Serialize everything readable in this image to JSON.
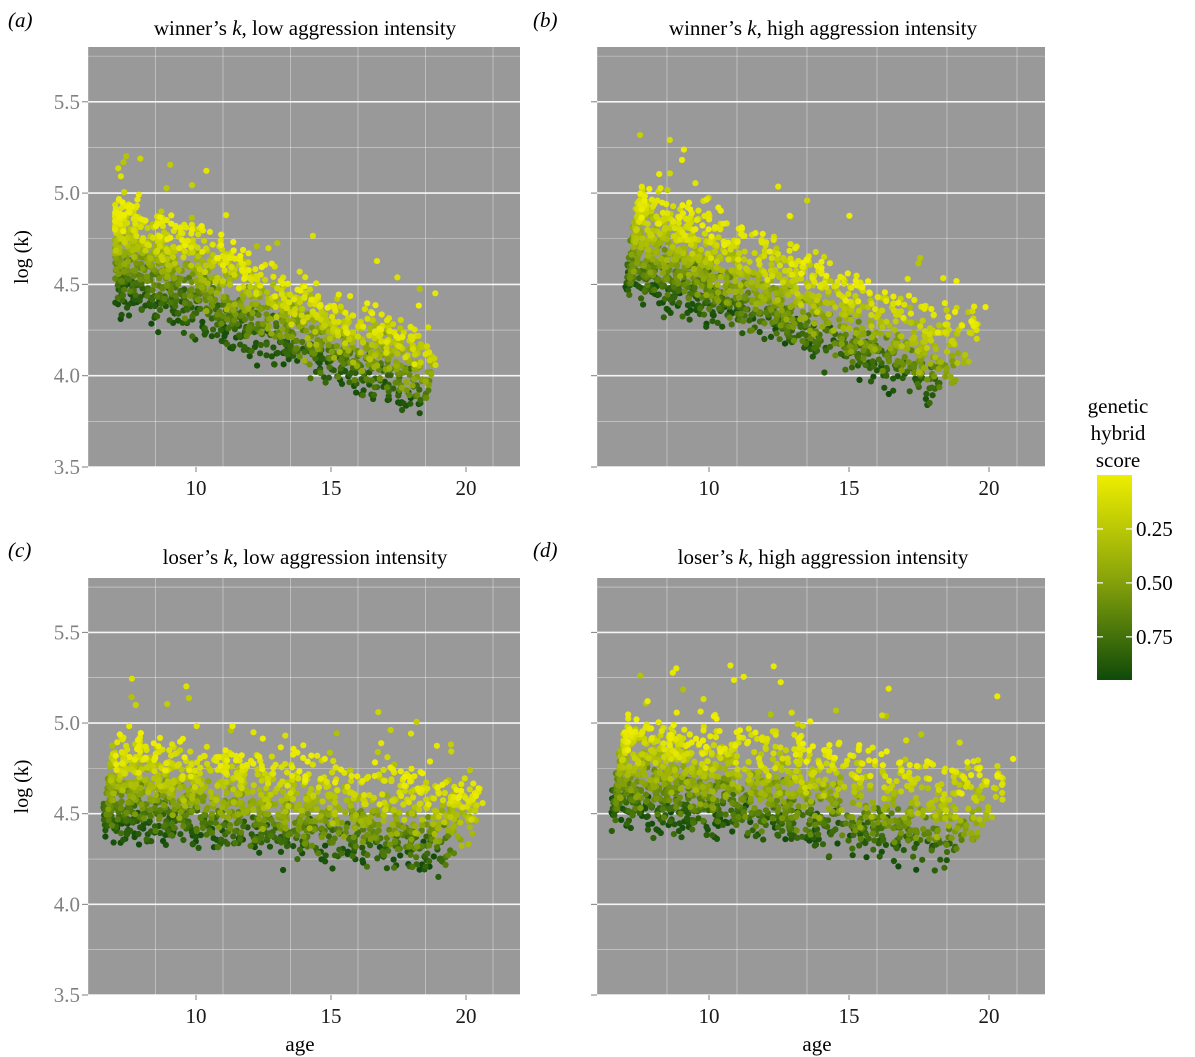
{
  "legend": {
    "title_lines": [
      "genetic",
      "hybrid",
      "score"
    ],
    "ticks": [
      {
        "value": 0.25,
        "label": "0.25"
      },
      {
        "value": 0.5,
        "label": "0.50"
      },
      {
        "value": 0.75,
        "label": "0.75"
      }
    ],
    "range": [
      0.0,
      0.95
    ],
    "color_low": "#eeee00",
    "color_mid": "#8aa50a",
    "color_high": "#0f4a0a"
  },
  "colors": {
    "panel_bg": "#999999",
    "grid": "#ffffff",
    "axis_text": "#808080"
  },
  "chart_data": [
    {
      "type": "scatter",
      "panel_label": "(a)",
      "title_pre": "winner’s ",
      "title_italic": "k",
      "title_post": ", low aggression intensity",
      "xlabel": "",
      "ylabel": "log (k)",
      "xlim": [
        6,
        22
      ],
      "ylim": [
        3.5,
        5.8
      ],
      "xticks": [
        10,
        15,
        20
      ],
      "yticks": [
        3.5,
        4.0,
        4.5,
        5.0,
        5.5
      ],
      "show_x_tick_labels": true,
      "show_y_tick_labels": true,
      "grid": true,
      "summary_trends": [
        {
          "score": 0.0,
          "points": [
            [
              7,
              4.92
            ],
            [
              10,
              4.78
            ],
            [
              15,
              4.38
            ],
            [
              19,
              4.18
            ]
          ]
        },
        {
          "score": 0.45,
          "points": [
            [
              7,
              4.7
            ],
            [
              10,
              4.55
            ],
            [
              15,
              4.2
            ],
            [
              19,
              4.0
            ]
          ]
        },
        {
          "score": 0.9,
          "points": [
            [
              7,
              4.45
            ],
            [
              10,
              4.28
            ],
            [
              15,
              4.05
            ],
            [
              18.5,
              3.82
            ]
          ]
        }
      ]
    },
    {
      "type": "scatter",
      "panel_label": "(b)",
      "title_pre": "winner’s ",
      "title_italic": "k",
      "title_post": ", high aggression intensity",
      "xlabel": "",
      "ylabel": "",
      "xlim": [
        6,
        22
      ],
      "ylim": [
        3.5,
        5.8
      ],
      "xticks": [
        10,
        15,
        20
      ],
      "yticks": [
        3.5,
        4.0,
        4.5,
        5.0,
        5.5
      ],
      "show_x_tick_labels": true,
      "show_y_tick_labels": false,
      "grid": true,
      "summary_trends": [
        {
          "score": 0.0,
          "points": [
            [
              7.5,
              5.0
            ],
            [
              10,
              4.85
            ],
            [
              15,
              4.55
            ],
            [
              20,
              4.3
            ]
          ]
        },
        {
          "score": 0.45,
          "points": [
            [
              7.5,
              4.7
            ],
            [
              10,
              4.55
            ],
            [
              15,
              4.25
            ],
            [
              18.5,
              4.05
            ]
          ]
        },
        {
          "score": 0.9,
          "points": [
            [
              7,
              4.5
            ],
            [
              10,
              4.38
            ],
            [
              15,
              4.1
            ],
            [
              18,
              3.92
            ]
          ]
        }
      ]
    },
    {
      "type": "scatter",
      "panel_label": "(c)",
      "title_pre": "loser’s ",
      "title_italic": "k",
      "title_post": ", low aggression intensity",
      "xlabel": "age",
      "ylabel": "log (k)",
      "xlim": [
        6,
        22
      ],
      "ylim": [
        3.5,
        5.8
      ],
      "xticks": [
        10,
        15,
        20
      ],
      "yticks": [
        3.5,
        4.0,
        4.5,
        5.0,
        5.5
      ],
      "show_x_tick_labels": true,
      "show_y_tick_labels": true,
      "grid": true,
      "summary_trends": [
        {
          "score": 0.0,
          "points": [
            [
              7,
              4.9
            ],
            [
              10,
              4.85
            ],
            [
              15,
              4.75
            ],
            [
              21,
              4.62
            ]
          ]
        },
        {
          "score": 0.45,
          "points": [
            [
              7,
              4.65
            ],
            [
              10,
              4.58
            ],
            [
              15,
              4.48
            ],
            [
              20,
              4.4
            ]
          ]
        },
        {
          "score": 0.9,
          "points": [
            [
              6.5,
              4.45
            ],
            [
              10,
              4.38
            ],
            [
              15,
              4.32
            ],
            [
              19,
              4.22
            ]
          ]
        }
      ]
    },
    {
      "type": "scatter",
      "panel_label": "(d)",
      "title_pre": "loser’s ",
      "title_italic": "k",
      "title_post": ", high aggression intensity",
      "xlabel": "age",
      "ylabel": "",
      "xlim": [
        6,
        22
      ],
      "ylim": [
        3.5,
        5.8
      ],
      "xticks": [
        10,
        15,
        20
      ],
      "yticks": [
        3.5,
        4.0,
        4.5,
        5.0,
        5.5
      ],
      "show_x_tick_labels": true,
      "show_y_tick_labels": false,
      "grid": true,
      "summary_trends": [
        {
          "score": 0.0,
          "points": [
            [
              7,
              4.98
            ],
            [
              10,
              4.95
            ],
            [
              15,
              4.85
            ],
            [
              21,
              4.73
            ]
          ]
        },
        {
          "score": 0.45,
          "points": [
            [
              7,
              4.72
            ],
            [
              10,
              4.66
            ],
            [
              15,
              4.55
            ],
            [
              18.5,
              4.45
            ]
          ]
        },
        {
          "score": 0.9,
          "points": [
            [
              6.5,
              4.52
            ],
            [
              10,
              4.45
            ],
            [
              15,
              4.38
            ],
            [
              18.5,
              4.27
            ]
          ]
        }
      ]
    }
  ]
}
